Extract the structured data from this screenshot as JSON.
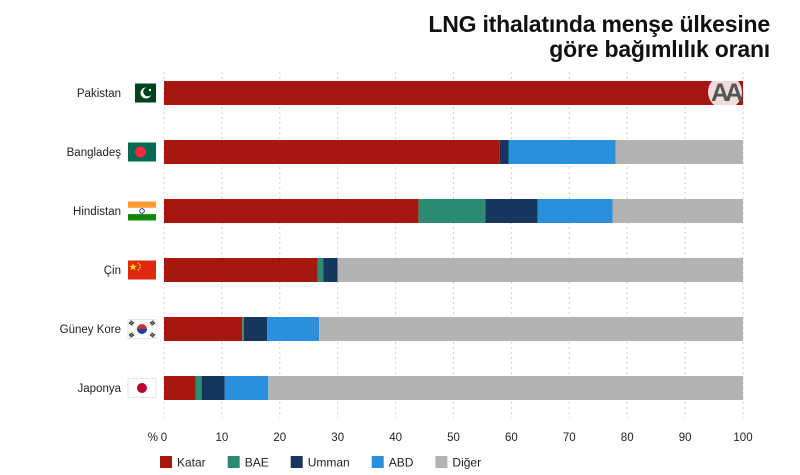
{
  "chart_data": {
    "type": "bar",
    "orientation": "horizontal",
    "stacked": true,
    "title": [
      "LNG ithalatında menşe ülkesine",
      "göre bağımlılık oranı"
    ],
    "axis_unit_label": "%",
    "xlim": [
      0,
      100
    ],
    "ticks": [
      0,
      10,
      20,
      30,
      40,
      50,
      60,
      70,
      80,
      90,
      100
    ],
    "categories": [
      "Pakistan",
      "Bangladeş",
      "Hindistan",
      "Çin",
      "Güney Kore",
      "Japonya"
    ],
    "series": [
      {
        "name": "Katar",
        "color": "#a5170f",
        "values": [
          100,
          58,
          44,
          26.5,
          13.5,
          5.5
        ]
      },
      {
        "name": "BAE",
        "color": "#2e8b73",
        "values": [
          0,
          0,
          11.5,
          1,
          0.3,
          1
        ]
      },
      {
        "name": "Umman",
        "color": "#17365d",
        "values": [
          0,
          1.5,
          9,
          2.5,
          4,
          4
        ]
      },
      {
        "name": "ABD",
        "color": "#2a8fdc",
        "values": [
          0,
          18.5,
          13,
          0,
          9,
          7.5
        ]
      },
      {
        "name": "Diğer",
        "color": "#b3b3b3",
        "values": [
          0,
          22,
          22.5,
          70,
          73.2,
          82
        ]
      }
    ],
    "legend_position": "bottom-left",
    "grid": true
  },
  "flags": [
    "pakistan-flag",
    "bangladesh-flag",
    "india-flag",
    "china-flag",
    "south-korea-flag",
    "japan-flag"
  ],
  "logo_text": "AA"
}
